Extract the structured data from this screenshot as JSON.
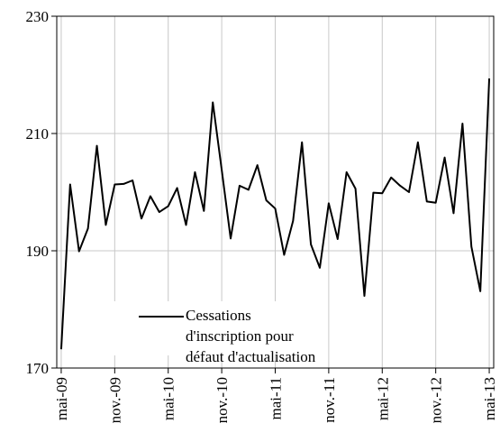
{
  "chart_data": {
    "type": "line",
    "categories": [
      "mai-09",
      null,
      null,
      null,
      null,
      null,
      "nov.-09",
      null,
      null,
      null,
      null,
      null,
      "mai-10",
      null,
      null,
      null,
      null,
      null,
      "nov.-10",
      null,
      null,
      null,
      null,
      null,
      "mai-11",
      null,
      null,
      null,
      null,
      null,
      "nov.-11",
      null,
      null,
      null,
      null,
      null,
      "mai-12",
      null,
      null,
      null,
      null,
      null,
      "nov.-12",
      null,
      null,
      null,
      null,
      null,
      "mai-13"
    ],
    "series": [
      {
        "name": "Cessations d'inscription pour défaut d'actualisation",
        "color": "#000000",
        "values": [
          173.2,
          201.3,
          189.9,
          193.8,
          207.9,
          194.4,
          201.3,
          201.4,
          202.0,
          195.5,
          199.3,
          196.6,
          197.6,
          200.7,
          194.4,
          203.4,
          196.8,
          215.3,
          203.8,
          192.1,
          201.1,
          200.4,
          204.6,
          198.6,
          197.2,
          189.3,
          195.1,
          208.5,
          191.1,
          187.1,
          198.1,
          192.0,
          203.4,
          200.6,
          182.3,
          199.9,
          199.8,
          202.5,
          201.1,
          200.0,
          208.5,
          198.4,
          198.2,
          205.9,
          196.4,
          211.7,
          190.7,
          183.1,
          219.4
        ]
      }
    ],
    "ylim": [
      170,
      230
    ],
    "yticks": [
      170,
      190,
      210,
      230
    ],
    "grid": true
  }
}
